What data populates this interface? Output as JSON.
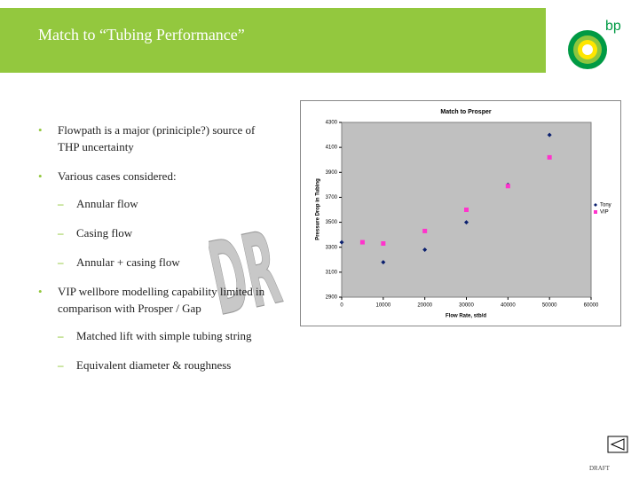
{
  "header": {
    "title": "Match to “Tubing Performance”",
    "logo_text": "bp"
  },
  "bullets": [
    {
      "text": "Flowpath is a major (priniciple?) source of THP uncertainty",
      "subs": []
    },
    {
      "text": "Various cases considered:",
      "subs": [
        "Annular flow",
        "Casing flow",
        "Annular + casing flow"
      ]
    },
    {
      "text": "VIP wellbore modelling capability limited in comparison with Prosper / Gap",
      "subs": [
        "Matched lift with simple tubing string",
        "Equivalent diameter & roughness"
      ]
    }
  ],
  "watermark": "DR",
  "footer": "DRAFT",
  "chart_data": {
    "type": "scatter",
    "title": "Match to Prosper",
    "x_label": "Flow Rate, stb/d",
    "y_label": "Pressure Drop in Tubing",
    "xlim": [
      0,
      60000
    ],
    "xticks": [
      0,
      10000,
      20000,
      30000,
      40000,
      50000,
      60000
    ],
    "ylim": [
      2900,
      4300
    ],
    "yticks": [
      2900,
      3100,
      3300,
      3500,
      3700,
      3900,
      4100,
      4300
    ],
    "grid": false,
    "legend": "right",
    "background": "#c0c0c0",
    "series": [
      {
        "name": "Tony",
        "color": "#0a1f6e",
        "marker": "diamond",
        "x": [
          0,
          10000,
          20000,
          30000,
          40000,
          50000
        ],
        "values": [
          3340,
          3180,
          3280,
          3500,
          3800,
          4200
        ]
      },
      {
        "name": "VIP",
        "color": "#ff33cc",
        "marker": "square",
        "x": [
          5000,
          10000,
          20000,
          30000,
          40000,
          50000
        ],
        "values": [
          3340,
          3330,
          3430,
          3600,
          3790,
          4020
        ]
      }
    ]
  }
}
